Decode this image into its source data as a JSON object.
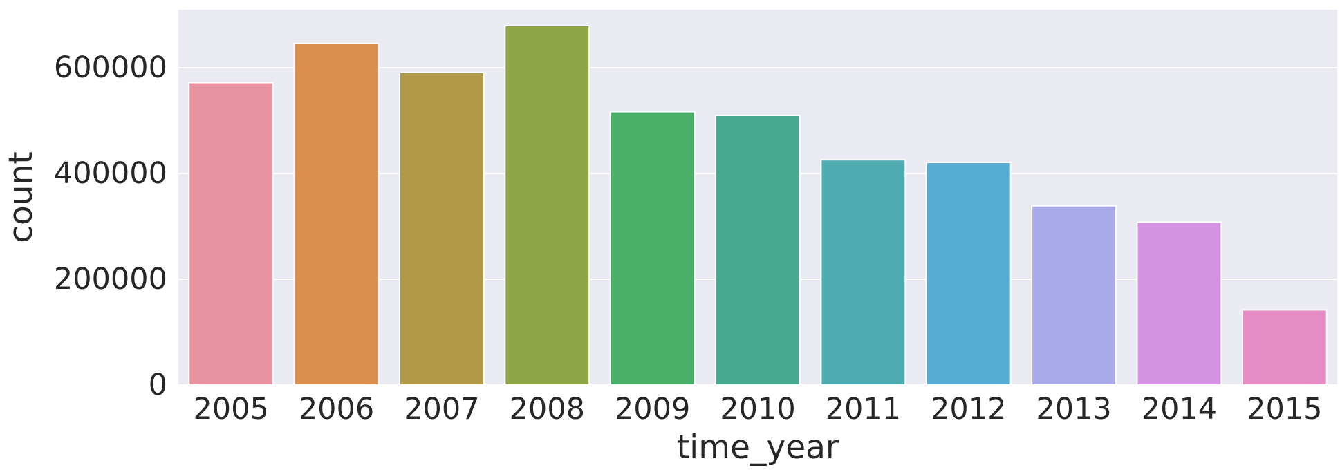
{
  "chart_data": {
    "type": "bar",
    "title": "",
    "xlabel": "time_year",
    "ylabel": "count",
    "categories": [
      "2005",
      "2006",
      "2007",
      "2008",
      "2009",
      "2010",
      "2011",
      "2012",
      "2013",
      "2014",
      "2015"
    ],
    "values": [
      572000,
      646000,
      591000,
      680000,
      517000,
      510000,
      426000,
      421000,
      339000,
      308000,
      142000
    ],
    "ylim": [
      0,
      710000
    ],
    "yticks": [
      0,
      200000,
      400000,
      600000
    ],
    "ytick_labels": [
      "0",
      "200000",
      "400000",
      "600000"
    ],
    "grid": true,
    "legend": "none",
    "colors": {
      "background": "#eaeaf2",
      "grid": "#ffffff",
      "text": "#262626",
      "bars": [
        "#e8939f",
        "#db8e4e",
        "#b09a48",
        "#8ea646",
        "#4aaf68",
        "#47a98e",
        "#4eabb0",
        "#56acd3",
        "#a8abe8",
        "#d494e3",
        "#e78dc6"
      ]
    }
  }
}
